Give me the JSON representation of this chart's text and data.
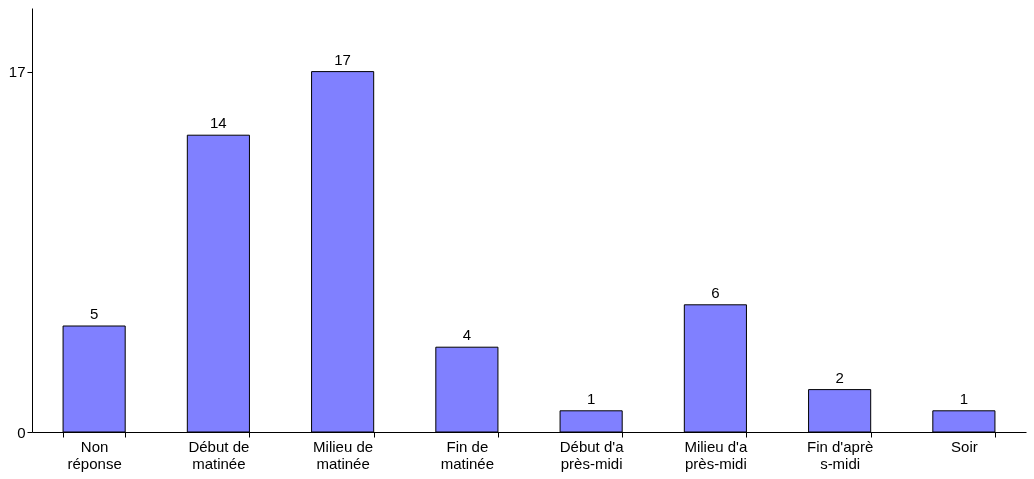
{
  "chart_data": {
    "type": "bar",
    "categories": [
      "Non\nréponse",
      "Début de\nmatinée",
      "Milieu de\nmatinée",
      "Fin de\nmatinée",
      "Début d'a\nprès-midi",
      "Milieu d'a\nprès-midi",
      "Fin d'aprè\ns-midi",
      "Soir"
    ],
    "values": [
      5,
      14,
      17,
      4,
      1,
      6,
      2,
      1
    ],
    "color": "#8080ff",
    "ylim": [
      0,
      20
    ],
    "yticks": [
      0,
      17
    ],
    "data_labels": true,
    "grid": false
  }
}
